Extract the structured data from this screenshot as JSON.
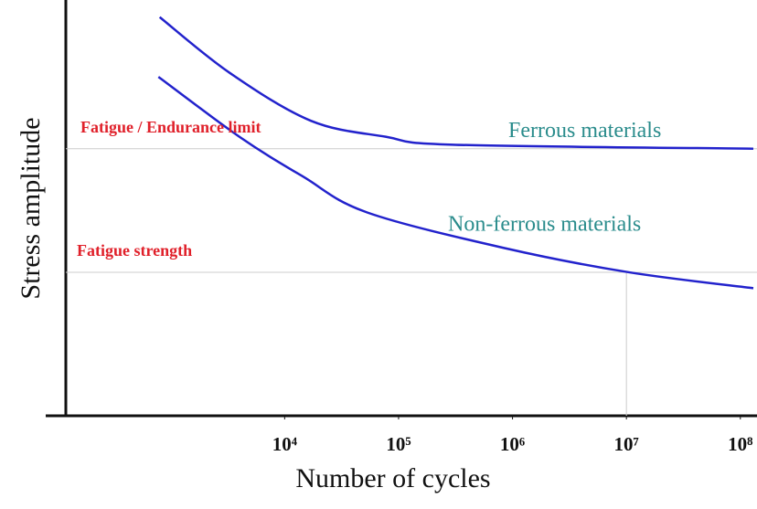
{
  "chart_data": {
    "type": "line",
    "xlabel": "Number of cycles",
    "ylabel": "Stress amplitude",
    "xscale": "log",
    "xlim": [
      120,
      140000000
    ],
    "xticks": [
      {
        "value": 10000,
        "label": "10⁴"
      },
      {
        "value": 100000,
        "label": "10⁵"
      },
      {
        "value": 1000000,
        "label": "10⁶"
      },
      {
        "value": 10000000,
        "label": "10⁷"
      },
      {
        "value": 100000000,
        "label": "10⁸"
      }
    ],
    "ylim": [
      0,
      102
    ],
    "series": [
      {
        "name": "Ferrous materials",
        "color": "#2222cc",
        "x": [
          800,
          3300,
          17000,
          77000,
          300000,
          130000000
        ],
        "values": [
          100,
          86,
          74,
          70,
          68,
          67
        ]
      },
      {
        "name": "Non-ferrous materials",
        "color": "#2222cc",
        "x": [
          780,
          4000,
          14500,
          53000,
          870000,
          10500000,
          130000000
        ],
        "values": [
          85,
          70,
          60,
          51,
          42,
          36,
          32
        ]
      }
    ],
    "annotations": [
      {
        "text": "Fatigue / Endurance limit",
        "y": 67
      },
      {
        "text": "Fatigue strength",
        "y": 36,
        "x": 10000000
      }
    ]
  }
}
